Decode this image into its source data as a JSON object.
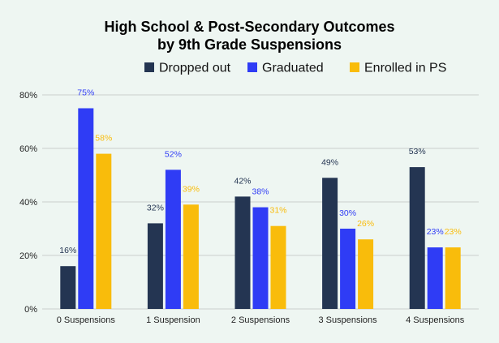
{
  "chart_data": {
    "type": "bar",
    "title_line1": "High School & Post-Secondary Outcomes",
    "title_line2": "by 9th Grade Suspensions",
    "categories": [
      "0 Suspensions",
      "1 Suspension",
      "2 Suspensions",
      "3 Suspensions",
      "4 Suspensions"
    ],
    "series": [
      {
        "name": "Dropped out",
        "color": "#243552",
        "values": [
          16,
          32,
          42,
          49,
          53
        ],
        "labels": [
          "16%",
          "32%",
          "42%",
          "49%",
          "53%"
        ]
      },
      {
        "name": "Graduated",
        "color": "#2f3cf5",
        "values": [
          75,
          52,
          38,
          30,
          23
        ],
        "labels": [
          "75%",
          "52%",
          "38%",
          "30%",
          "23%"
        ]
      },
      {
        "name": "Enrolled in PS",
        "color": "#f9bc0b",
        "values": [
          58,
          39,
          31,
          26,
          23
        ],
        "labels": [
          "58%",
          "39%",
          "31%",
          "26%",
          "23%"
        ]
      }
    ],
    "yticks": [
      0,
      20,
      40,
      60,
      80
    ],
    "ytick_labels": [
      "0%",
      "20%",
      "40%",
      "60%",
      "80%"
    ],
    "ylim": [
      0,
      80
    ],
    "grid": true,
    "legend_position": "top"
  }
}
